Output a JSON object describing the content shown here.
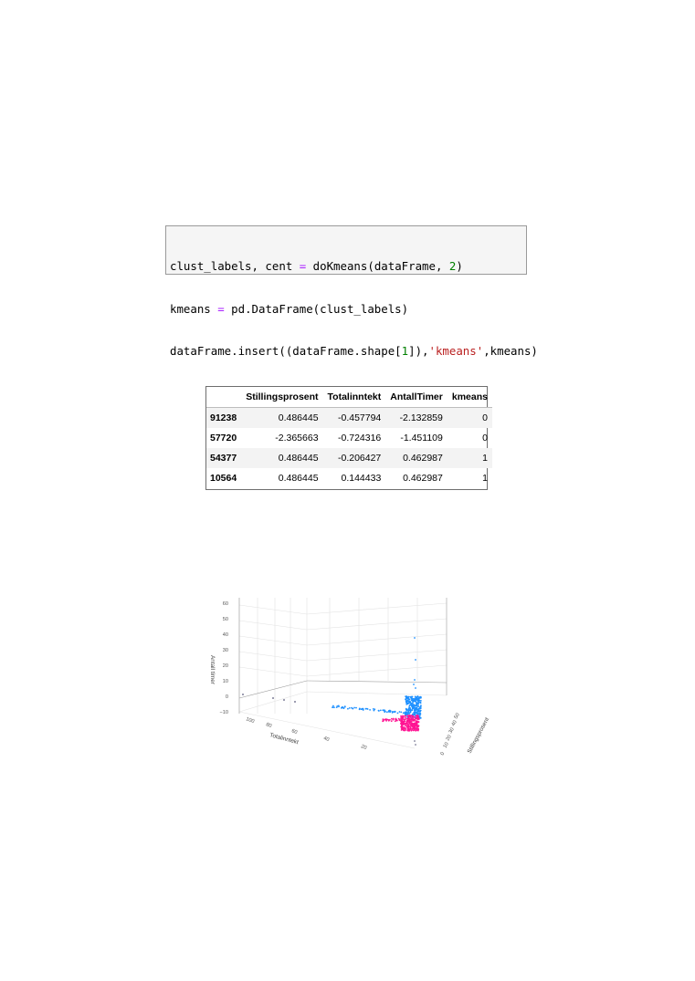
{
  "code": {
    "line1": {
      "a": "clust_labels, cent ",
      "op": "=",
      "b": " doKmeans(dataFrame, ",
      "num": "2",
      "c": ")"
    },
    "line2": {
      "a": "kmeans ",
      "op": "=",
      "b": " pd.DataFrame(clust_labels)"
    },
    "line3": {
      "a": "dataFrame.insert((dataFrame.shape[",
      "num": "1",
      "b": "]),",
      "str": "'kmeans'",
      "c": ",kmeans)"
    }
  },
  "dataframe": {
    "columns": [
      "",
      "Stillingsprosent",
      "Totalinntekt",
      "AntallTimer",
      "kmeans"
    ],
    "rows": [
      {
        "index": "91238",
        "values": [
          "0.486445",
          "-0.457794",
          "-2.132859",
          "0"
        ]
      },
      {
        "index": "57720",
        "values": [
          "-2.365663",
          "-0.724316",
          "-1.451109",
          "0"
        ]
      },
      {
        "index": "54377",
        "values": [
          "0.486445",
          "-0.206427",
          "0.462987",
          "1"
        ]
      },
      {
        "index": "10564",
        "values": [
          "0.486445",
          "0.144433",
          "0.462987",
          "1"
        ]
      }
    ]
  },
  "chart_data": {
    "type": "scatter",
    "title": "",
    "axes": {
      "z": {
        "label": "Antall timer",
        "ticks": [
          "60",
          "50",
          "40",
          "30",
          "20",
          "10",
          "0",
          "−10"
        ]
      },
      "x": {
        "label": "Totalinntekt",
        "ticks": [
          "100",
          "80",
          "60",
          "40",
          "20"
        ]
      },
      "y": {
        "label": "Stillingsprosent",
        "ticks": [
          "0",
          "10",
          "20",
          "30",
          "40",
          "50"
        ]
      }
    },
    "series": [
      {
        "kmeans": 0,
        "color": "#ff1493"
      },
      {
        "kmeans": 1,
        "color": "#1e90ff"
      }
    ],
    "colors": {
      "cluster0": "#ff1493",
      "cluster1": "#1e90ff",
      "outlier": "#555577"
    },
    "grid": true
  }
}
